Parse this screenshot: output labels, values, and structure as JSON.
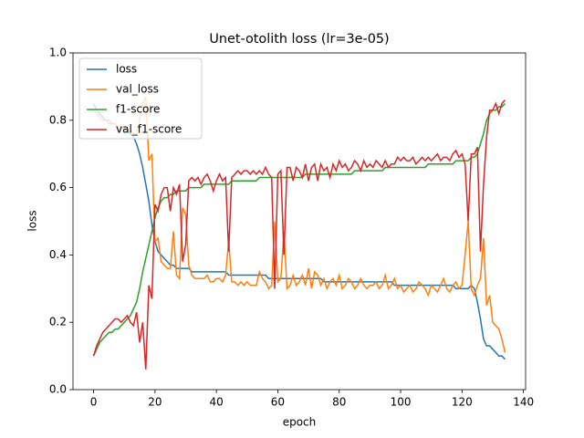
{
  "chart_data": {
    "type": "line",
    "title": "Unet-otolith loss (lr=3e-05)",
    "x_label": "epoch",
    "y_label": "loss",
    "x": [
      0,
      1,
      2,
      3,
      4,
      5,
      6,
      7,
      8,
      9,
      10,
      11,
      12,
      13,
      14,
      15,
      16,
      17,
      18,
      19,
      20,
      21,
      22,
      23,
      24,
      25,
      26,
      27,
      28,
      29,
      30,
      31,
      32,
      33,
      34,
      35,
      36,
      37,
      38,
      39,
      40,
      41,
      42,
      43,
      44,
      45,
      46,
      47,
      48,
      49,
      50,
      51,
      52,
      53,
      54,
      55,
      56,
      57,
      58,
      59,
      60,
      61,
      62,
      63,
      64,
      65,
      66,
      67,
      68,
      69,
      70,
      71,
      72,
      73,
      74,
      75,
      76,
      77,
      78,
      79,
      80,
      81,
      82,
      83,
      84,
      85,
      86,
      87,
      88,
      89,
      90,
      91,
      92,
      93,
      94,
      95,
      96,
      97,
      98,
      99,
      100,
      101,
      102,
      103,
      104,
      105,
      106,
      107,
      108,
      109,
      110,
      111,
      112,
      113,
      114,
      115,
      116,
      117,
      118,
      119,
      120,
      121,
      122,
      123,
      124,
      125,
      126,
      127,
      128,
      129,
      130,
      131,
      132,
      133,
      134
    ],
    "series": [
      {
        "name": "loss",
        "color": "#1f77b4",
        "values": [
          0.85,
          0.83,
          0.82,
          0.81,
          0.8,
          0.8,
          0.79,
          0.79,
          0.78,
          0.78,
          0.77,
          0.77,
          0.76,
          0.75,
          0.73,
          0.7,
          0.66,
          0.61,
          0.56,
          0.49,
          0.44,
          0.41,
          0.4,
          0.39,
          0.38,
          0.37,
          0.37,
          0.36,
          0.36,
          0.36,
          0.36,
          0.36,
          0.35,
          0.35,
          0.35,
          0.35,
          0.35,
          0.35,
          0.35,
          0.35,
          0.35,
          0.35,
          0.35,
          0.35,
          0.34,
          0.34,
          0.34,
          0.34,
          0.34,
          0.34,
          0.34,
          0.34,
          0.34,
          0.34,
          0.34,
          0.34,
          0.34,
          0.33,
          0.33,
          0.33,
          0.33,
          0.33,
          0.33,
          0.33,
          0.33,
          0.33,
          0.33,
          0.33,
          0.33,
          0.33,
          0.33,
          0.33,
          0.33,
          0.33,
          0.33,
          0.32,
          0.32,
          0.32,
          0.32,
          0.32,
          0.32,
          0.32,
          0.32,
          0.32,
          0.32,
          0.32,
          0.32,
          0.32,
          0.32,
          0.32,
          0.32,
          0.32,
          0.32,
          0.32,
          0.32,
          0.32,
          0.32,
          0.32,
          0.31,
          0.31,
          0.31,
          0.31,
          0.31,
          0.31,
          0.31,
          0.31,
          0.31,
          0.31,
          0.31,
          0.31,
          0.31,
          0.31,
          0.31,
          0.31,
          0.31,
          0.31,
          0.31,
          0.31,
          0.3,
          0.3,
          0.3,
          0.3,
          0.3,
          0.31,
          0.3,
          0.26,
          0.21,
          0.15,
          0.13,
          0.13,
          0.12,
          0.11,
          0.1,
          0.1,
          0.09
        ]
      },
      {
        "name": "val_loss",
        "color": "#ff7f0e",
        "values": [
          0.83,
          0.82,
          0.81,
          0.8,
          0.8,
          0.79,
          0.79,
          0.79,
          0.78,
          0.78,
          0.78,
          0.77,
          0.77,
          0.76,
          0.76,
          0.8,
          0.85,
          0.87,
          0.68,
          0.7,
          0.44,
          0.45,
          0.38,
          0.37,
          0.36,
          0.36,
          0.47,
          0.34,
          0.33,
          0.54,
          0.52,
          0.37,
          0.34,
          0.33,
          0.33,
          0.33,
          0.33,
          0.34,
          0.32,
          0.32,
          0.33,
          0.33,
          0.32,
          0.34,
          0.44,
          0.32,
          0.32,
          0.31,
          0.32,
          0.31,
          0.32,
          0.31,
          0.31,
          0.31,
          0.35,
          0.33,
          0.32,
          0.3,
          0.31,
          0.5,
          0.32,
          0.33,
          0.47,
          0.3,
          0.31,
          0.34,
          0.31,
          0.32,
          0.34,
          0.31,
          0.36,
          0.3,
          0.35,
          0.34,
          0.31,
          0.33,
          0.3,
          0.32,
          0.33,
          0.31,
          0.34,
          0.3,
          0.31,
          0.33,
          0.32,
          0.3,
          0.31,
          0.33,
          0.31,
          0.3,
          0.31,
          0.31,
          0.32,
          0.3,
          0.31,
          0.34,
          0.3,
          0.31,
          0.33,
          0.3,
          0.31,
          0.29,
          0.3,
          0.31,
          0.29,
          0.3,
          0.32,
          0.31,
          0.3,
          0.28,
          0.31,
          0.3,
          0.29,
          0.31,
          0.33,
          0.3,
          0.29,
          0.31,
          0.32,
          0.3,
          0.31,
          0.4,
          0.5,
          0.3,
          0.28,
          0.31,
          0.33,
          0.45,
          0.25,
          0.28,
          0.2,
          0.19,
          0.18,
          0.15,
          0.11
        ]
      },
      {
        "name": "f1-score",
        "color": "#2ca02c",
        "values": [
          0.1,
          0.12,
          0.14,
          0.15,
          0.16,
          0.17,
          0.17,
          0.18,
          0.18,
          0.19,
          0.2,
          0.21,
          0.22,
          0.24,
          0.26,
          0.3,
          0.35,
          0.39,
          0.43,
          0.47,
          0.51,
          0.54,
          0.56,
          0.57,
          0.57,
          0.58,
          0.58,
          0.59,
          0.59,
          0.59,
          0.59,
          0.6,
          0.6,
          0.6,
          0.6,
          0.6,
          0.61,
          0.61,
          0.61,
          0.61,
          0.61,
          0.61,
          0.61,
          0.61,
          0.61,
          0.62,
          0.62,
          0.62,
          0.62,
          0.62,
          0.62,
          0.62,
          0.62,
          0.62,
          0.63,
          0.63,
          0.63,
          0.63,
          0.63,
          0.63,
          0.63,
          0.63,
          0.63,
          0.63,
          0.63,
          0.63,
          0.63,
          0.63,
          0.63,
          0.64,
          0.64,
          0.64,
          0.64,
          0.64,
          0.64,
          0.64,
          0.64,
          0.64,
          0.64,
          0.64,
          0.64,
          0.64,
          0.64,
          0.64,
          0.64,
          0.65,
          0.65,
          0.65,
          0.65,
          0.65,
          0.65,
          0.65,
          0.65,
          0.65,
          0.65,
          0.66,
          0.66,
          0.66,
          0.66,
          0.66,
          0.66,
          0.66,
          0.66,
          0.66,
          0.66,
          0.66,
          0.66,
          0.66,
          0.66,
          0.67,
          0.67,
          0.67,
          0.67,
          0.67,
          0.67,
          0.67,
          0.67,
          0.67,
          0.68,
          0.68,
          0.68,
          0.68,
          0.68,
          0.69,
          0.69,
          0.7,
          0.73,
          0.76,
          0.8,
          0.82,
          0.83,
          0.83,
          0.84,
          0.84,
          0.85
        ]
      },
      {
        "name": "val_f1-score",
        "color": "#d62728",
        "values": [
          0.1,
          0.13,
          0.15,
          0.17,
          0.18,
          0.19,
          0.2,
          0.21,
          0.21,
          0.2,
          0.21,
          0.22,
          0.2,
          0.19,
          0.23,
          0.14,
          0.2,
          0.06,
          0.31,
          0.27,
          0.55,
          0.53,
          0.58,
          0.6,
          0.6,
          0.53,
          0.6,
          0.58,
          0.61,
          0.38,
          0.43,
          0.62,
          0.63,
          0.62,
          0.63,
          0.61,
          0.63,
          0.64,
          0.62,
          0.59,
          0.62,
          0.64,
          0.62,
          0.63,
          0.41,
          0.63,
          0.64,
          0.65,
          0.64,
          0.65,
          0.65,
          0.64,
          0.65,
          0.64,
          0.65,
          0.64,
          0.66,
          0.64,
          0.63,
          0.3,
          0.64,
          0.65,
          0.4,
          0.66,
          0.66,
          0.62,
          0.66,
          0.65,
          0.63,
          0.67,
          0.62,
          0.66,
          0.67,
          0.62,
          0.67,
          0.65,
          0.66,
          0.63,
          0.67,
          0.65,
          0.68,
          0.66,
          0.67,
          0.65,
          0.66,
          0.68,
          0.67,
          0.65,
          0.68,
          0.66,
          0.67,
          0.66,
          0.68,
          0.67,
          0.66,
          0.68,
          0.66,
          0.67,
          0.67,
          0.69,
          0.68,
          0.69,
          0.68,
          0.68,
          0.69,
          0.67,
          0.68,
          0.69,
          0.68,
          0.69,
          0.68,
          0.69,
          0.7,
          0.68,
          0.69,
          0.69,
          0.68,
          0.7,
          0.71,
          0.69,
          0.7,
          0.67,
          0.5,
          0.7,
          0.7,
          0.72,
          0.41,
          0.61,
          0.75,
          0.83,
          0.83,
          0.85,
          0.82,
          0.85,
          0.86
        ]
      }
    ],
    "xlim": [
      -6.7,
      140.7
    ],
    "ylim": [
      0,
      1
    ],
    "xticks": [
      0,
      20,
      40,
      60,
      80,
      100,
      120,
      140
    ],
    "yticks": [
      {
        "value": 0,
        "label": "0.0"
      },
      {
        "value": 0.2,
        "label": "0.2"
      },
      {
        "value": 0.4,
        "label": "0.4"
      },
      {
        "value": 0.6,
        "label": "0.6"
      },
      {
        "value": 0.8,
        "label": "0.8"
      },
      {
        "value": 1,
        "label": "1.0"
      }
    ],
    "legend": "upper left",
    "grid": false
  }
}
